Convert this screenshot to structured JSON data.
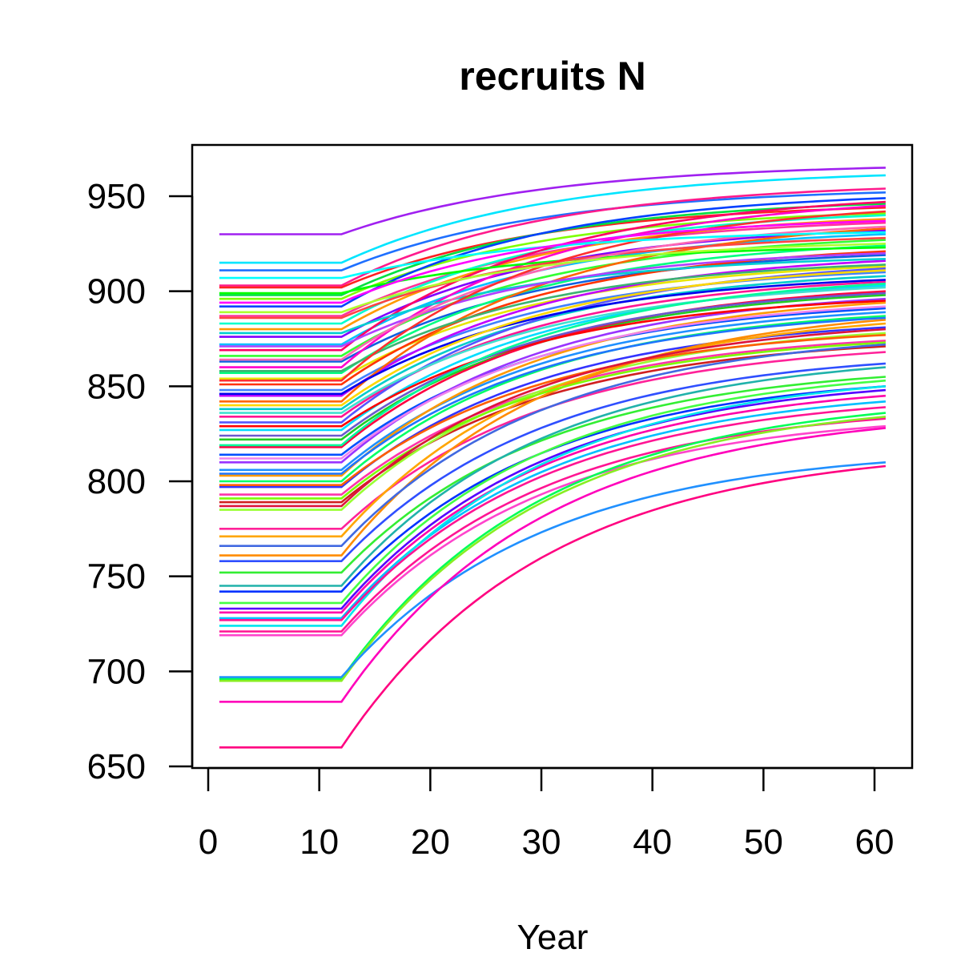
{
  "chart_data": {
    "type": "line",
    "title": "recruits N",
    "xlabel": "Year",
    "ylabel": "",
    "xlim": [
      1,
      61
    ],
    "ylim": [
      650,
      975
    ],
    "x_ticks": [
      "0",
      "10",
      "20",
      "30",
      "40",
      "50",
      "60"
    ],
    "y_ticks": [
      "650",
      "700",
      "750",
      "800",
      "850",
      "900",
      "950"
    ],
    "grid": false,
    "legend": "none",
    "plateau_end_year": 12,
    "series": [
      {
        "color": "#A020F0",
        "start": 930,
        "end": 965
      },
      {
        "color": "#00E5FF",
        "start": 915,
        "end": 961
      },
      {
        "color": "#1E6FFF",
        "start": 911,
        "end": 952
      },
      {
        "color": "#FF1A8C",
        "start": 903,
        "end": 954
      },
      {
        "color": "#FF2020",
        "start": 902,
        "end": 944
      },
      {
        "color": "#00E040",
        "start": 898,
        "end": 946
      },
      {
        "color": "#7FFF00",
        "start": 896,
        "end": 941
      },
      {
        "color": "#0040FF",
        "start": 892,
        "end": 949
      },
      {
        "color": "#FF3399",
        "start": 887,
        "end": 936
      },
      {
        "color": "#00FFCC",
        "start": 883,
        "end": 940
      },
      {
        "color": "#FF9900",
        "start": 880,
        "end": 938
      },
      {
        "color": "#8000FF",
        "start": 876,
        "end": 932
      },
      {
        "color": "#00BFFF",
        "start": 872,
        "end": 930
      },
      {
        "color": "#FF0066",
        "start": 869,
        "end": 947
      },
      {
        "color": "#33FF33",
        "start": 866,
        "end": 927
      },
      {
        "color": "#1060E0",
        "start": 863,
        "end": 919
      },
      {
        "color": "#FF00CC",
        "start": 860,
        "end": 945
      },
      {
        "color": "#00FF80",
        "start": 857,
        "end": 924
      },
      {
        "color": "#E6E600",
        "start": 854,
        "end": 913
      },
      {
        "color": "#FF3300",
        "start": 851,
        "end": 921
      },
      {
        "color": "#4080FF",
        "start": 848,
        "end": 910
      },
      {
        "color": "#C000FF",
        "start": 845,
        "end": 916
      },
      {
        "color": "#FF6600",
        "start": 842,
        "end": 933
      },
      {
        "color": "#00CCCC",
        "start": 838,
        "end": 908
      },
      {
        "color": "#FF1493",
        "start": 834,
        "end": 905
      },
      {
        "color": "#5555FF",
        "start": 831,
        "end": 912
      },
      {
        "color": "#00DDFF",
        "start": 827,
        "end": 903
      },
      {
        "color": "#22CC22",
        "start": 822,
        "end": 898
      },
      {
        "color": "#FF0040",
        "start": 818,
        "end": 900
      },
      {
        "color": "#0050FF",
        "start": 814,
        "end": 891
      },
      {
        "color": "#9933FF",
        "start": 810,
        "end": 896
      },
      {
        "color": "#1E90FF",
        "start": 806,
        "end": 889
      },
      {
        "color": "#FF9900",
        "start": 803,
        "end": 894
      },
      {
        "color": "#00FF66",
        "start": 800,
        "end": 887
      },
      {
        "color": "#3333FF",
        "start": 797,
        "end": 881
      },
      {
        "color": "#FF33AA",
        "start": 793,
        "end": 874
      },
      {
        "color": "#D02020",
        "start": 789,
        "end": 871
      },
      {
        "color": "#99FF33",
        "start": 785,
        "end": 878
      },
      {
        "color": "#FF2299",
        "start": 775,
        "end": 868
      },
      {
        "color": "#FFA500",
        "start": 771,
        "end": 883
      },
      {
        "color": "#FF8C00",
        "start": 761,
        "end": 885
      },
      {
        "color": "#2F4FFF",
        "start": 758,
        "end": 862
      },
      {
        "color": "#33EE33",
        "start": 752,
        "end": 855
      },
      {
        "color": "#0033FF",
        "start": 742,
        "end": 850
      },
      {
        "color": "#44FF44",
        "start": 736,
        "end": 853
      },
      {
        "color": "#5500FF",
        "start": 733,
        "end": 848
      },
      {
        "color": "#FF00AA",
        "start": 731,
        "end": 845
      },
      {
        "color": "#00BFFF",
        "start": 728,
        "end": 842
      },
      {
        "color": "#00E5EE",
        "start": 724,
        "end": 850
      },
      {
        "color": "#FF1493",
        "start": 721,
        "end": 833
      },
      {
        "color": "#FF44CC",
        "start": 719,
        "end": 829
      },
      {
        "color": "#00FF55",
        "start": 696,
        "end": 836
      },
      {
        "color": "#88EE22",
        "start": 695,
        "end": 834
      },
      {
        "color": "#2090FF",
        "start": 697,
        "end": 810
      },
      {
        "color": "#FF00BB",
        "start": 684,
        "end": 828
      },
      {
        "color": "#FF0080",
        "start": 660,
        "end": 808
      },
      {
        "color": "#00FF00",
        "start": 899,
        "end": 923
      },
      {
        "color": "#FF4444",
        "start": 886,
        "end": 928
      },
      {
        "color": "#00CED1",
        "start": 878,
        "end": 917
      },
      {
        "color": "#B040FF",
        "start": 871,
        "end": 920
      },
      {
        "color": "#FF66B2",
        "start": 864,
        "end": 934
      },
      {
        "color": "#3CB371",
        "start": 858,
        "end": 914
      },
      {
        "color": "#FF2F2F",
        "start": 853,
        "end": 942
      },
      {
        "color": "#0000EE",
        "start": 846,
        "end": 906
      },
      {
        "color": "#FFD700",
        "start": 840,
        "end": 911
      },
      {
        "color": "#40E0D0",
        "start": 836,
        "end": 902
      },
      {
        "color": "#FF0000",
        "start": 829,
        "end": 895
      },
      {
        "color": "#6A5ACD",
        "start": 824,
        "end": 899
      },
      {
        "color": "#00FA9A",
        "start": 819,
        "end": 904
      },
      {
        "color": "#EE82EE",
        "start": 812,
        "end": 892
      },
      {
        "color": "#1F75FE",
        "start": 804,
        "end": 886
      },
      {
        "color": "#FF5E00",
        "start": 798,
        "end": 877
      },
      {
        "color": "#7CFC00",
        "start": 791,
        "end": 873
      },
      {
        "color": "#DC143C",
        "start": 787,
        "end": 880
      },
      {
        "color": "#4169E1",
        "start": 766,
        "end": 872
      },
      {
        "color": "#20B2AA",
        "start": 745,
        "end": 860
      },
      {
        "color": "#FF1493",
        "start": 727,
        "end": 839
      },
      {
        "color": "#00FFFF",
        "start": 907,
        "end": 931
      },
      {
        "color": "#FF00FF",
        "start": 894,
        "end": 937
      },
      {
        "color": "#ADFF2F",
        "start": 889,
        "end": 925
      }
    ]
  }
}
